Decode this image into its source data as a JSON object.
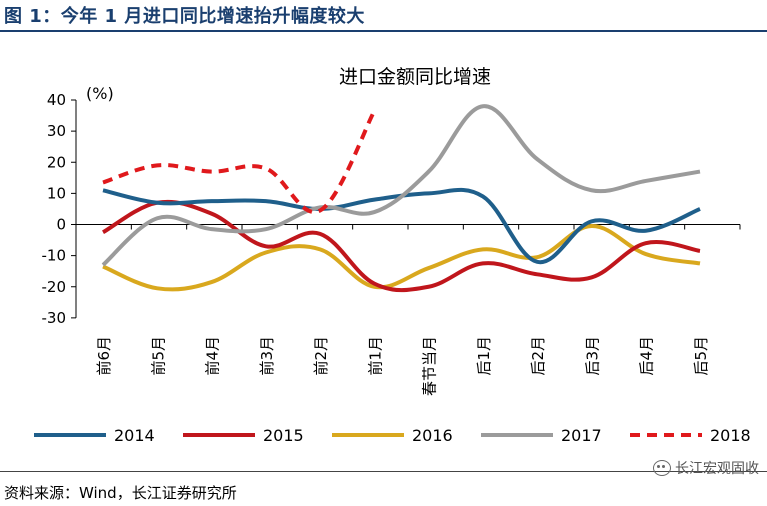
{
  "figure": {
    "title": "图 1：今年 1 月进口同比增速抬升幅度较大",
    "source": "资料来源：Wind，长江证券研究所",
    "watermark": "长江宏观固收",
    "watermark_icon": "wechat-icon"
  },
  "chart_data": {
    "type": "line",
    "title": "进口金额同比增速",
    "ylabel": "(%)",
    "xlabel": "",
    "ylim": [
      -30,
      40
    ],
    "yticks": [
      -30,
      -20,
      -10,
      0,
      10,
      20,
      30,
      40
    ],
    "grid": false,
    "legend_position": "bottom",
    "categories": [
      "前6月",
      "前5月",
      "前4月",
      "前3月",
      "前2月",
      "前1月",
      "春节当月",
      "后1月",
      "后2月",
      "后3月",
      "后4月",
      "后5月"
    ],
    "series": [
      {
        "name": "2014",
        "color": "#1f5f8b",
        "dashed": false,
        "values": [
          11,
          7,
          7.5,
          7.5,
          5,
          8,
          10,
          9,
          -12,
          1,
          -2,
          5
        ]
      },
      {
        "name": "2015",
        "color": "#c0161c",
        "dashed": false,
        "values": [
          -2.5,
          7,
          3.5,
          -7,
          -3,
          -19,
          -20,
          -12.5,
          -16,
          -17,
          -6,
          -8.5
        ]
      },
      {
        "name": "2016",
        "color": "#d9a81e",
        "dashed": false,
        "values": [
          -13.5,
          -20.5,
          -18.5,
          -9,
          -8,
          -20,
          -14,
          -8,
          -10.5,
          -0.5,
          -9.5,
          -12.5
        ]
      },
      {
        "name": "2017",
        "color": "#9b9b9b",
        "dashed": false,
        "values": [
          -13,
          2,
          -1.5,
          -1.5,
          5.5,
          4,
          17,
          38,
          21,
          11,
          14,
          17
        ]
      },
      {
        "name": "2018",
        "color": "#e0191c",
        "dashed": true,
        "values": [
          13.5,
          19,
          17,
          18,
          4.5,
          36.5,
          null,
          null,
          null,
          null,
          null,
          null
        ]
      }
    ]
  }
}
